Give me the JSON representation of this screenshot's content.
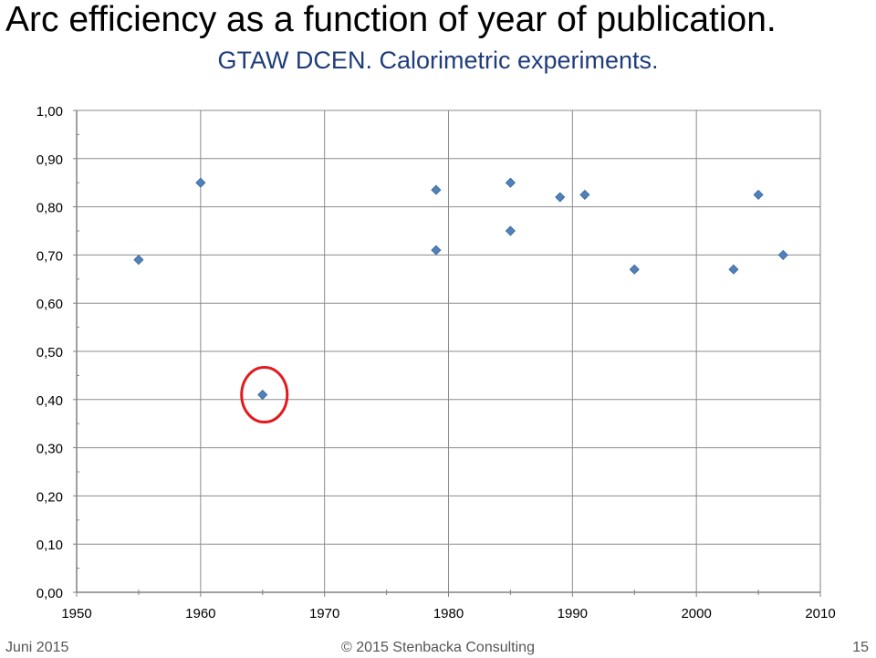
{
  "page": {
    "title": "Arc efficiency as a function of year of publication.",
    "subtitle": "GTAW DCEN. Calorimetric experiments.",
    "footer_left": "Juni 2015",
    "footer_center": "© 2015 Stenbacka Consulting",
    "footer_right": "15"
  },
  "chart_data": {
    "type": "scatter",
    "title": "Arc efficiency as a function of year of publication.",
    "subtitle": "GTAW DCEN. Calorimetric experiments.",
    "xlabel": "",
    "ylabel": "",
    "xlim": [
      1950,
      2010
    ],
    "ylim": [
      0,
      1
    ],
    "x_ticks": [
      "1950",
      "1960",
      "1970",
      "1980",
      "1990",
      "2000",
      "2010"
    ],
    "y_ticks": [
      "0,00",
      "0,10",
      "0,20",
      "0,30",
      "0,40",
      "0,50",
      "0,60",
      "0,70",
      "0,80",
      "0,90",
      "1,00"
    ],
    "grid": true,
    "marker_color": "#4f81bd",
    "highlight_color": "#e31a1c",
    "points": [
      {
        "x": 1955,
        "y": 0.69
      },
      {
        "x": 1960,
        "y": 0.85
      },
      {
        "x": 1965,
        "y": 0.41,
        "highlight": true
      },
      {
        "x": 1979,
        "y": 0.835
      },
      {
        "x": 1979,
        "y": 0.71
      },
      {
        "x": 1985,
        "y": 0.85
      },
      {
        "x": 1985,
        "y": 0.75
      },
      {
        "x": 1989,
        "y": 0.82
      },
      {
        "x": 1991,
        "y": 0.825
      },
      {
        "x": 1995,
        "y": 0.67
      },
      {
        "x": 2003,
        "y": 0.67
      },
      {
        "x": 2005,
        "y": 0.825
      },
      {
        "x": 2007,
        "y": 0.7
      }
    ]
  }
}
